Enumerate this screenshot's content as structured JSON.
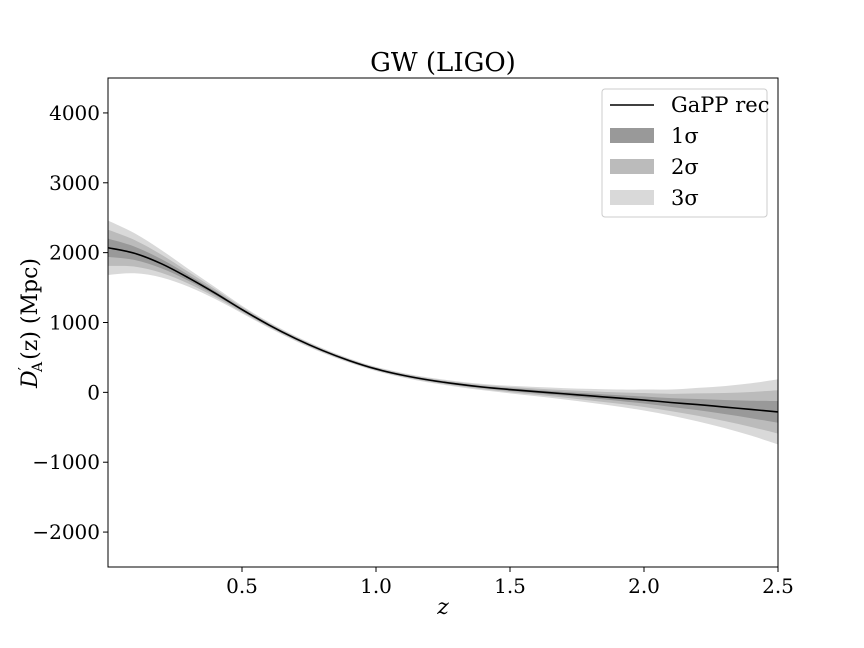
{
  "chart_data": {
    "type": "line",
    "title": "GW (LIGO)",
    "xlabel": "z",
    "ylabel_main": "D",
    "ylabel_prime": "′",
    "ylabel_sub": "A",
    "ylabel_rest": "(z) (Mpc)",
    "xlim": [
      0.0,
      2.5
    ],
    "ylim": [
      -2500,
      4500
    ],
    "xticks": [
      0.5,
      1.0,
      1.5,
      2.0,
      2.5
    ],
    "xtick_labels": [
      "0.5",
      "1.0",
      "1.5",
      "2.0",
      "2.5"
    ],
    "yticks": [
      -2000,
      -1000,
      0,
      1000,
      2000,
      3000,
      4000
    ],
    "ytick_labels": [
      "−2000",
      "−1000",
      "0",
      "1000",
      "2000",
      "3000",
      "4000"
    ],
    "grid": false,
    "legend_position": "top-right",
    "legend": [
      {
        "label": "GaPP rec",
        "kind": "line",
        "color": "#000000"
      },
      {
        "label": "1σ",
        "kind": "patch",
        "color": "#999999"
      },
      {
        "label": "2σ",
        "kind": "patch",
        "color": "#bbbbbb"
      },
      {
        "label": "3σ",
        "kind": "patch",
        "color": "#d9d9d9"
      }
    ],
    "x": [
      0.0,
      0.1,
      0.2,
      0.3,
      0.4,
      0.5,
      0.6,
      0.7,
      0.8,
      0.9,
      1.0,
      1.1,
      1.2,
      1.3,
      1.4,
      1.5,
      1.6,
      1.7,
      1.8,
      1.9,
      2.0,
      2.1,
      2.2,
      2.3,
      2.4,
      2.5
    ],
    "series": [
      {
        "name": "GaPP rec",
        "values": [
          2070,
          1990,
          1840,
          1640,
          1420,
          1185,
          965,
          770,
          600,
          455,
          335,
          245,
          175,
          120,
          75,
          40,
          10,
          -20,
          -50,
          -80,
          -110,
          -145,
          -175,
          -210,
          -245,
          -280
        ],
        "sigma": [
          130,
          95,
          65,
          42,
          28,
          18,
          14,
          12,
          11,
          10,
          10,
          11,
          12,
          13,
          15,
          18,
          22,
          27,
          33,
          40,
          50,
          62,
          80,
          100,
          125,
          155
        ]
      }
    ],
    "bands": [
      {
        "label": "1σ",
        "k": 1,
        "color": "#999999"
      },
      {
        "label": "2σ",
        "k": 2,
        "color": "#bbbbbb"
      },
      {
        "label": "3σ",
        "k": 3,
        "color": "#d9d9d9"
      }
    ]
  }
}
